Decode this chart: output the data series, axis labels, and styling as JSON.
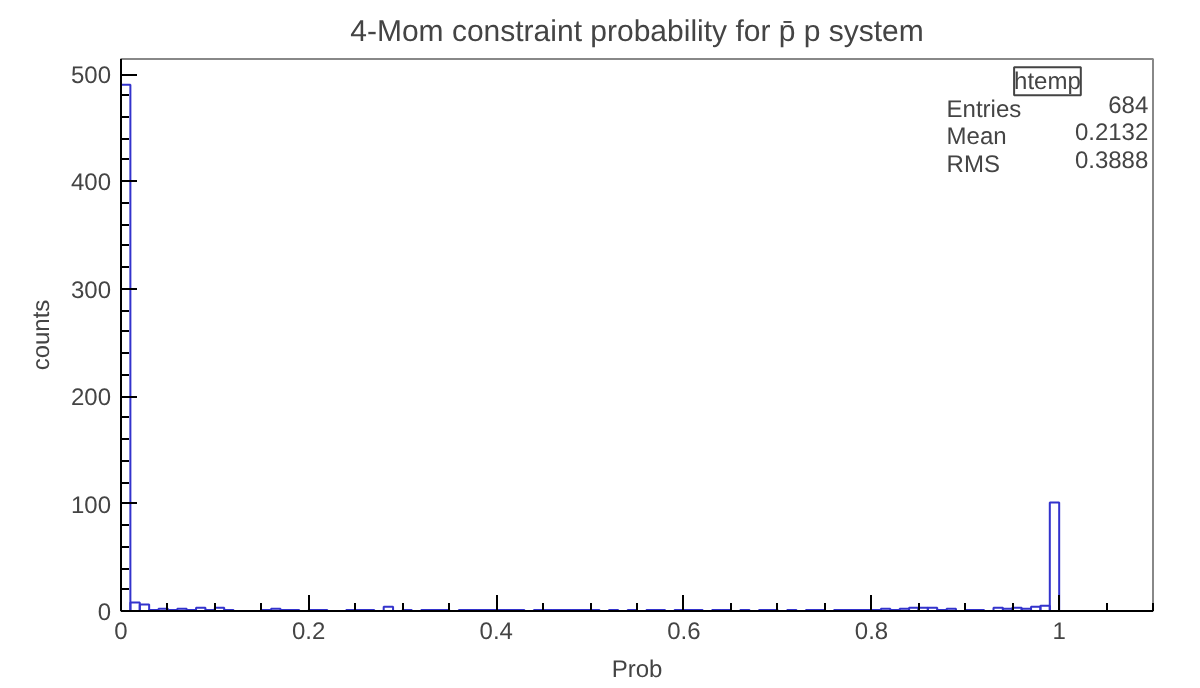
{
  "chart_data": {
    "type": "histogram",
    "title": "4-Mom constraint probability for p̄ p system",
    "xlabel": "Prob",
    "ylabel": "counts",
    "color": "#3333cc",
    "bins": [
      0,
      0.01,
      0.02,
      0.03,
      0.04,
      0.05,
      0.06,
      0.07,
      0.08,
      0.09,
      0.1,
      0.11,
      0.12,
      0.13,
      0.14,
      0.15,
      0.16,
      0.17,
      0.18,
      0.19,
      0.2,
      0.21,
      0.22,
      0.23,
      0.24,
      0.25,
      0.26,
      0.27,
      0.28,
      0.29,
      0.3,
      0.31,
      0.32,
      0.33,
      0.34,
      0.35,
      0.36,
      0.37,
      0.38,
      0.39,
      0.4,
      0.41,
      0.42,
      0.43,
      0.44,
      0.45,
      0.46,
      0.47,
      0.48,
      0.49,
      0.5,
      0.51,
      0.52,
      0.53,
      0.54,
      0.55,
      0.56,
      0.57,
      0.58,
      0.59,
      0.6,
      0.61,
      0.62,
      0.63,
      0.64,
      0.65,
      0.66,
      0.67,
      0.68,
      0.69,
      0.7,
      0.71,
      0.72,
      0.73,
      0.74,
      0.75,
      0.76,
      0.77,
      0.78,
      0.79,
      0.8,
      0.81,
      0.82,
      0.83,
      0.84,
      0.85,
      0.86,
      0.87,
      0.88,
      0.89,
      0.9,
      0.91,
      0.92,
      0.93,
      0.94,
      0.95,
      0.96,
      0.97,
      0.98,
      0.99,
      1.0,
      1.01,
      1.02,
      1.03,
      1.04,
      1.05,
      1.06,
      1.07,
      1.08,
      1.09,
      1.1
    ],
    "values": [
      490,
      8,
      6,
      1,
      2,
      1,
      2,
      1,
      3,
      1,
      3,
      1,
      0,
      0,
      0,
      1,
      2,
      1,
      1,
      0,
      1,
      1,
      0,
      0,
      1,
      1,
      1,
      0,
      4,
      0,
      1,
      0,
      1,
      1,
      1,
      0,
      1,
      1,
      1,
      1,
      1,
      1,
      1,
      0,
      1,
      1,
      1,
      1,
      1,
      1,
      1,
      0,
      1,
      0,
      1,
      0,
      1,
      1,
      0,
      1,
      1,
      1,
      0,
      1,
      1,
      0,
      1,
      0,
      1,
      1,
      0,
      1,
      0,
      1,
      1,
      0,
      1,
      1,
      1,
      1,
      1,
      2,
      1,
      2,
      3,
      3,
      3,
      1,
      2,
      0,
      1,
      1,
      0,
      3,
      2,
      3,
      2,
      4,
      5,
      101,
      0,
      0,
      0,
      0,
      0,
      0,
      0,
      0,
      0,
      0
    ],
    "xlim": [
      0,
      1.1
    ],
    "ylim": [
      0,
      514
    ],
    "xticks": [
      {
        "value": 0,
        "label": "0"
      },
      0.2,
      0.4,
      0.6,
      0.8,
      {
        "value": 1,
        "label": "1"
      }
    ],
    "yticks": [
      0,
      100,
      200,
      300,
      400,
      500
    ],
    "grid": false,
    "annotations": [
      "htemp",
      "Entries",
      "684",
      "Mean",
      "0.2132",
      "RMS",
      "0.3888"
    ]
  }
}
